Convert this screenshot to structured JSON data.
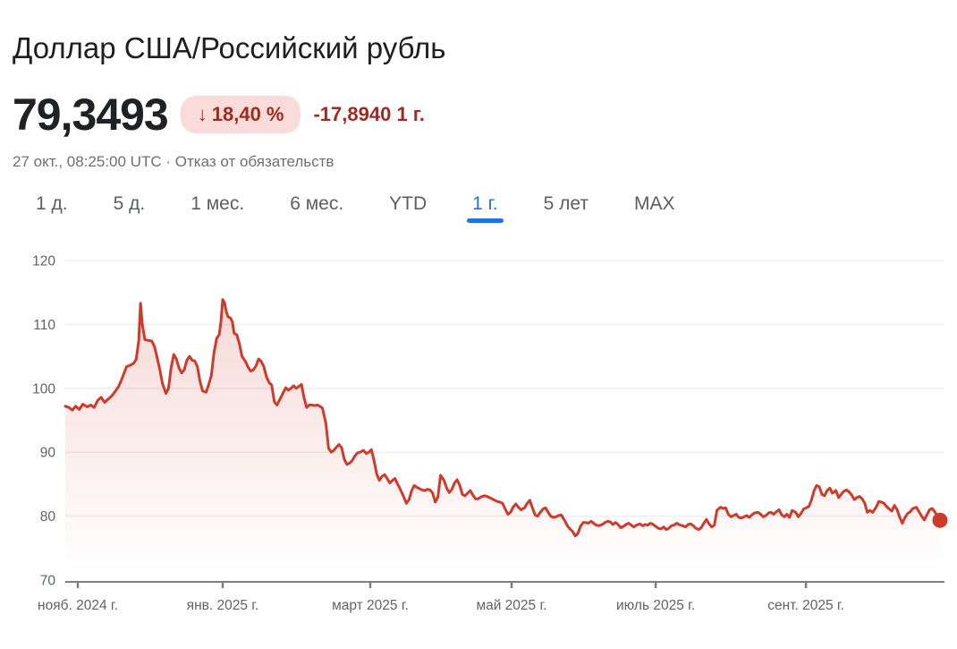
{
  "header": {
    "title": "Доллар США/Российский рубль",
    "price": "79,3493",
    "badge": {
      "arrow_icon": "↓",
      "percent": "18,40 %"
    },
    "change": "-17,8940 1 г.",
    "timestamp": "27 окт., 08:25:00 UTC",
    "separator": "·",
    "disclaimer": "Отказ от обязательств"
  },
  "tabs": [
    {
      "label": "1 д.",
      "active": false
    },
    {
      "label": "5 д.",
      "active": false
    },
    {
      "label": "1 мес.",
      "active": false
    },
    {
      "label": "6 мес.",
      "active": false
    },
    {
      "label": "YTD",
      "active": false
    },
    {
      "label": "1 г.",
      "active": true
    },
    {
      "label": "5 лет",
      "active": false
    },
    {
      "label": "MAX",
      "active": false
    }
  ],
  "colors": {
    "accent_blue": "#1a73e8",
    "line_red": "#ce3b2b",
    "badge_bg": "#f9dcd9",
    "badge_text": "#9f2b20",
    "grid": "#eef0f2",
    "axis": "#7b8085",
    "axis_label": "#5f6368"
  },
  "chart_data": {
    "type": "line",
    "title": "Доллар США/Российский рубль — 1 г.",
    "pair": "USD/RUB",
    "last_value": 79.3493,
    "ylim": [
      70,
      120
    ],
    "yticks": [
      70,
      80,
      90,
      100,
      110,
      120
    ],
    "grid": true,
    "legend": "none",
    "line_color": "#ce3b2b",
    "xticks": [
      {
        "t": 0.0143,
        "label": "нояб. 2024 г."
      },
      {
        "t": 0.18,
        "label": "янв. 2025 г."
      },
      {
        "t": 0.3487,
        "label": "март 2025 г."
      },
      {
        "t": 0.5102,
        "label": "май 2025 г."
      },
      {
        "t": 0.6749,
        "label": "июль 2025 г."
      },
      {
        "t": 0.8467,
        "label": "сент. 2025 г."
      }
    ],
    "points": [
      [
        0,
        97.2
      ],
      [
        0.004,
        97.0
      ],
      [
        0.008,
        96.6
      ],
      [
        0.012,
        97.2
      ],
      [
        0.016,
        96.7
      ],
      [
        0.02,
        97.5
      ],
      [
        0.025,
        97.1
      ],
      [
        0.029,
        97.4
      ],
      [
        0.033,
        97.0
      ],
      [
        0.037,
        98.1
      ],
      [
        0.041,
        98.6
      ],
      [
        0.045,
        97.8
      ],
      [
        0.049,
        98.3
      ],
      [
        0.053,
        98.8
      ],
      [
        0.057,
        99.5
      ],
      [
        0.061,
        100.3
      ],
      [
        0.065,
        101.6
      ],
      [
        0.07,
        103.4
      ],
      [
        0.074,
        103.6
      ],
      [
        0.078,
        103.9
      ],
      [
        0.081,
        104.5
      ],
      [
        0.084,
        107.5
      ],
      [
        0.086,
        113.3
      ],
      [
        0.088,
        110.0
      ],
      [
        0.091,
        107.6
      ],
      [
        0.095,
        107.5
      ],
      [
        0.099,
        107.4
      ],
      [
        0.102,
        106.5
      ],
      [
        0.105,
        104.8
      ],
      [
        0.108,
        103.0
      ],
      [
        0.111,
        100.8
      ],
      [
        0.115,
        99.2
      ],
      [
        0.118,
        100.0
      ],
      [
        0.121,
        103.2
      ],
      [
        0.124,
        105.3
      ],
      [
        0.127,
        104.6
      ],
      [
        0.13,
        103.2
      ],
      [
        0.133,
        102.4
      ],
      [
        0.136,
        102.9
      ],
      [
        0.139,
        104.4
      ],
      [
        0.142,
        105.0
      ],
      [
        0.145,
        104.4
      ],
      [
        0.148,
        104.3
      ],
      [
        0.151,
        103.4
      ],
      [
        0.154,
        101.1
      ],
      [
        0.157,
        99.6
      ],
      [
        0.161,
        99.4
      ],
      [
        0.164,
        100.6
      ],
      [
        0.167,
        102.0
      ],
      [
        0.17,
        105.6
      ],
      [
        0.173,
        107.8
      ],
      [
        0.176,
        108.4
      ],
      [
        0.178,
        110.5
      ],
      [
        0.18,
        113.9
      ],
      [
        0.182,
        113.4
      ],
      [
        0.184,
        112.0
      ],
      [
        0.186,
        111.2
      ],
      [
        0.189,
        111.0
      ],
      [
        0.191,
        110.4
      ],
      [
        0.193,
        108.6
      ],
      [
        0.196,
        108.4
      ],
      [
        0.199,
        107.0
      ],
      [
        0.202,
        105.0
      ],
      [
        0.206,
        104.2
      ],
      [
        0.209,
        103.3
      ],
      [
        0.212,
        102.7
      ],
      [
        0.215,
        102.9
      ],
      [
        0.218,
        103.5
      ],
      [
        0.221,
        104.6
      ],
      [
        0.224,
        104.2
      ],
      [
        0.227,
        103.4
      ],
      [
        0.23,
        101.8
      ],
      [
        0.233,
        100.9
      ],
      [
        0.236,
        100.5
      ],
      [
        0.239,
        97.9
      ],
      [
        0.242,
        97.4
      ],
      [
        0.245,
        98.2
      ],
      [
        0.248,
        99.0
      ],
      [
        0.252,
        100.1
      ],
      [
        0.255,
        99.7
      ],
      [
        0.258,
        100.0
      ],
      [
        0.261,
        100.4
      ],
      [
        0.264,
        100.0
      ],
      [
        0.267,
        100.3
      ],
      [
        0.27,
        100.6
      ],
      [
        0.273,
        98.5
      ],
      [
        0.276,
        97.0
      ],
      [
        0.279,
        97.4
      ],
      [
        0.282,
        97.4
      ],
      [
        0.285,
        97.3
      ],
      [
        0.288,
        97.4
      ],
      [
        0.291,
        97.2
      ],
      [
        0.294,
        96.9
      ],
      [
        0.298,
        94.5
      ],
      [
        0.301,
        90.6
      ],
      [
        0.304,
        90.0
      ],
      [
        0.307,
        90.3
      ],
      [
        0.31,
        90.8
      ],
      [
        0.313,
        91.2
      ],
      [
        0.316,
        90.7
      ],
      [
        0.319,
        88.9
      ],
      [
        0.322,
        88.1
      ],
      [
        0.325,
        88.3
      ],
      [
        0.328,
        88.7
      ],
      [
        0.331,
        89.4
      ],
      [
        0.334,
        89.9
      ],
      [
        0.337,
        90.0
      ],
      [
        0.341,
        90.3
      ],
      [
        0.344,
        89.8
      ],
      [
        0.347,
        90.0
      ],
      [
        0.35,
        90.4
      ],
      [
        0.353,
        88.7
      ],
      [
        0.356,
        86.6
      ],
      [
        0.359,
        85.6
      ],
      [
        0.362,
        86.2
      ],
      [
        0.365,
        86.5
      ],
      [
        0.368,
        85.9
      ],
      [
        0.371,
        85.2
      ],
      [
        0.374,
        85.6
      ],
      [
        0.377,
        85.9
      ],
      [
        0.38,
        85.0
      ],
      [
        0.383,
        84.2
      ],
      [
        0.387,
        83.0
      ],
      [
        0.39,
        82.0
      ],
      [
        0.393,
        82.6
      ],
      [
        0.396,
        84.0
      ],
      [
        0.399,
        84.8
      ],
      [
        0.402,
        84.5
      ],
      [
        0.405,
        84.3
      ],
      [
        0.408,
        84.1
      ],
      [
        0.411,
        84.0
      ],
      [
        0.414,
        84.2
      ],
      [
        0.417,
        84.1
      ],
      [
        0.42,
        83.6
      ],
      [
        0.423,
        82.2
      ],
      [
        0.426,
        83.0
      ],
      [
        0.429,
        86.4
      ],
      [
        0.433,
        85.6
      ],
      [
        0.436,
        84.4
      ],
      [
        0.439,
        83.7
      ],
      [
        0.442,
        84.2
      ],
      [
        0.445,
        85.2
      ],
      [
        0.448,
        85.7
      ],
      [
        0.451,
        84.8
      ],
      [
        0.454,
        83.4
      ],
      [
        0.457,
        83.2
      ],
      [
        0.46,
        83.6
      ],
      [
        0.463,
        84.0
      ],
      [
        0.466,
        83.3
      ],
      [
        0.469,
        82.7
      ],
      [
        0.472,
        82.7
      ],
      [
        0.475,
        83.0
      ],
      [
        0.479,
        83.2
      ],
      [
        0.482,
        83.1
      ],
      [
        0.485,
        82.9
      ],
      [
        0.488,
        82.7
      ],
      [
        0.491,
        82.5
      ],
      [
        0.494,
        82.3
      ],
      [
        0.497,
        82.2
      ],
      [
        0.5,
        82.0
      ],
      [
        0.503,
        81.1
      ],
      [
        0.506,
        80.3
      ],
      [
        0.509,
        80.6
      ],
      [
        0.512,
        81.4
      ],
      [
        0.515,
        81.9
      ],
      [
        0.518,
        81.4
      ],
      [
        0.521,
        81.0
      ],
      [
        0.525,
        81.3
      ],
      [
        0.528,
        82.0
      ],
      [
        0.531,
        82.5
      ],
      [
        0.534,
        81.3
      ],
      [
        0.537,
        80.2
      ],
      [
        0.54,
        80.0
      ],
      [
        0.543,
        80.6
      ],
      [
        0.546,
        81.1
      ],
      [
        0.549,
        81.3
      ],
      [
        0.552,
        80.6
      ],
      [
        0.555,
        80.0
      ],
      [
        0.558,
        79.8
      ],
      [
        0.561,
        79.9
      ],
      [
        0.564,
        80.1
      ],
      [
        0.567,
        80.2
      ],
      [
        0.571,
        79.3
      ],
      [
        0.574,
        78.5
      ],
      [
        0.577,
        78.0
      ],
      [
        0.58,
        77.6
      ],
      [
        0.583,
        76.9
      ],
      [
        0.586,
        77.3
      ],
      [
        0.589,
        78.4
      ],
      [
        0.592,
        79.0
      ],
      [
        0.595,
        79.0
      ],
      [
        0.598,
        78.9
      ],
      [
        0.601,
        79.2
      ],
      [
        0.604,
        78.9
      ],
      [
        0.607,
        78.6
      ],
      [
        0.61,
        78.5
      ],
      [
        0.614,
        78.7
      ],
      [
        0.617,
        79.0
      ],
      [
        0.62,
        79.2
      ],
      [
        0.623,
        79.1
      ],
      [
        0.626,
        78.7
      ],
      [
        0.629,
        79.0
      ],
      [
        0.632,
        78.7
      ],
      [
        0.635,
        78.2
      ],
      [
        0.638,
        78.4
      ],
      [
        0.641,
        78.7
      ],
      [
        0.644,
        78.9
      ],
      [
        0.647,
        78.6
      ],
      [
        0.65,
        78.3
      ],
      [
        0.653,
        78.6
      ],
      [
        0.657,
        78.8
      ],
      [
        0.66,
        78.5
      ],
      [
        0.663,
        78.7
      ],
      [
        0.666,
        78.6
      ],
      [
        0.669,
        78.9
      ],
      [
        0.672,
        78.7
      ],
      [
        0.675,
        78.4
      ],
      [
        0.678,
        78.1
      ],
      [
        0.681,
        78.0
      ],
      [
        0.684,
        78.3
      ],
      [
        0.687,
        77.9
      ],
      [
        0.69,
        78.1
      ],
      [
        0.693,
        78.5
      ],
      [
        0.696,
        78.6
      ],
      [
        0.699,
        78.9
      ],
      [
        0.703,
        78.6
      ],
      [
        0.706,
        78.5
      ],
      [
        0.709,
        78.3
      ],
      [
        0.712,
        78.7
      ],
      [
        0.715,
        78.8
      ],
      [
        0.718,
        78.5
      ],
      [
        0.721,
        78.1
      ],
      [
        0.724,
        77.9
      ],
      [
        0.727,
        78.2
      ],
      [
        0.73,
        78.9
      ],
      [
        0.733,
        79.5
      ],
      [
        0.736,
        78.8
      ],
      [
        0.739,
        78.3
      ],
      [
        0.742,
        78.6
      ],
      [
        0.745,
        80.9
      ],
      [
        0.749,
        81.4
      ],
      [
        0.752,
        81.2
      ],
      [
        0.755,
        81.3
      ],
      [
        0.758,
        80.3
      ],
      [
        0.761,
        79.9
      ],
      [
        0.764,
        80.1
      ],
      [
        0.767,
        80.3
      ],
      [
        0.77,
        79.8
      ],
      [
        0.773,
        79.7
      ],
      [
        0.776,
        79.9
      ],
      [
        0.779,
        80.1
      ],
      [
        0.782,
        79.8
      ],
      [
        0.785,
        80.2
      ],
      [
        0.788,
        80.5
      ],
      [
        0.792,
        80.6
      ],
      [
        0.795,
        80.3
      ],
      [
        0.798,
        79.9
      ],
      [
        0.801,
        80.1
      ],
      [
        0.804,
        80.5
      ],
      [
        0.807,
        80.6
      ],
      [
        0.81,
        80.3
      ],
      [
        0.813,
        80.7
      ],
      [
        0.816,
        81.0
      ],
      [
        0.819,
        80.2
      ],
      [
        0.822,
        79.9
      ],
      [
        0.825,
        80.3
      ],
      [
        0.828,
        79.8
      ],
      [
        0.831,
        80.9
      ],
      [
        0.835,
        80.6
      ],
      [
        0.838,
        79.9
      ],
      [
        0.841,
        80.4
      ],
      [
        0.844,
        81.1
      ],
      [
        0.847,
        81.3
      ],
      [
        0.85,
        81.5
      ],
      [
        0.853,
        82.5
      ],
      [
        0.856,
        84.0
      ],
      [
        0.859,
        84.8
      ],
      [
        0.862,
        84.6
      ],
      [
        0.865,
        83.4
      ],
      [
        0.868,
        83.2
      ],
      [
        0.871,
        84.0
      ],
      [
        0.874,
        84.4
      ],
      [
        0.877,
        83.6
      ],
      [
        0.881,
        84.0
      ],
      [
        0.884,
        82.9
      ],
      [
        0.887,
        83.4
      ],
      [
        0.89,
        83.9
      ],
      [
        0.893,
        84.1
      ],
      [
        0.896,
        83.8
      ],
      [
        0.899,
        83.3
      ],
      [
        0.902,
        82.6
      ],
      [
        0.905,
        82.9
      ],
      [
        0.908,
        83.1
      ],
      [
        0.911,
        82.7
      ],
      [
        0.914,
        82.0
      ],
      [
        0.917,
        80.6
      ],
      [
        0.92,
        80.9
      ],
      [
        0.923,
        80.6
      ],
      [
        0.927,
        81.4
      ],
      [
        0.93,
        82.3
      ],
      [
        0.933,
        82.2
      ],
      [
        0.936,
        82.0
      ],
      [
        0.939,
        81.5
      ],
      [
        0.942,
        81.1
      ],
      [
        0.945,
        80.8
      ],
      [
        0.948,
        81.7
      ],
      [
        0.951,
        81.0
      ],
      [
        0.954,
        79.8
      ],
      [
        0.957,
        78.9
      ],
      [
        0.96,
        79.8
      ],
      [
        0.963,
        80.4
      ],
      [
        0.966,
        80.7
      ],
      [
        0.969,
        81.2
      ],
      [
        0.973,
        81.4
      ],
      [
        0.976,
        80.7
      ],
      [
        0.979,
        80.0
      ],
      [
        0.982,
        79.4
      ],
      [
        0.985,
        80.2
      ],
      [
        0.988,
        81.0
      ],
      [
        0.991,
        81.2
      ],
      [
        0.994,
        80.7
      ],
      [
        0.997,
        80.0
      ],
      [
        1,
        79.35
      ]
    ]
  }
}
